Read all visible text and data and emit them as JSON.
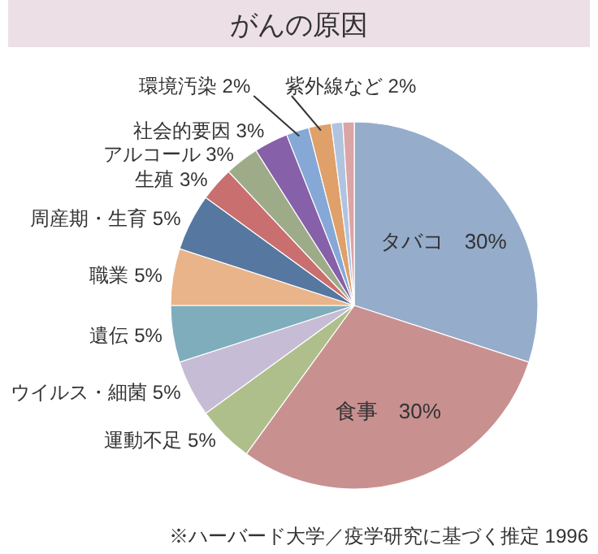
{
  "chart_data": {
    "type": "pie",
    "title": "がんの原因",
    "categories": [
      "タバコ",
      "食事",
      "運動不足",
      "ウイルス・細菌",
      "遺伝",
      "職業",
      "周産期・生育",
      "生殖",
      "アルコール",
      "社会的要因",
      "環境汚染",
      "紫外線など",
      null,
      null
    ],
    "values": [
      30,
      30,
      5,
      5,
      5,
      5,
      5,
      3,
      3,
      3,
      2,
      2,
      1,
      1
    ],
    "value_labels": [
      "30%",
      "30%",
      "5%",
      "5%",
      "5%",
      "5%",
      "5%",
      "3%",
      "3%",
      "3%",
      "2%",
      "2%",
      null,
      null
    ],
    "colors": [
      "#95adcb",
      "#c99090",
      "#aebf8c",
      "#c6bcd5",
      "#7fadbb",
      "#e9b48a",
      "#5677a0",
      "#c96f6f",
      "#9eab88",
      "#8660a8",
      "#86a8d6",
      "#dfa06a",
      "#b0c4e0",
      "#dba5a5"
    ],
    "annotations": [
      "※ハーバード大学／疫学研究に基づく推定 1996"
    ]
  }
}
